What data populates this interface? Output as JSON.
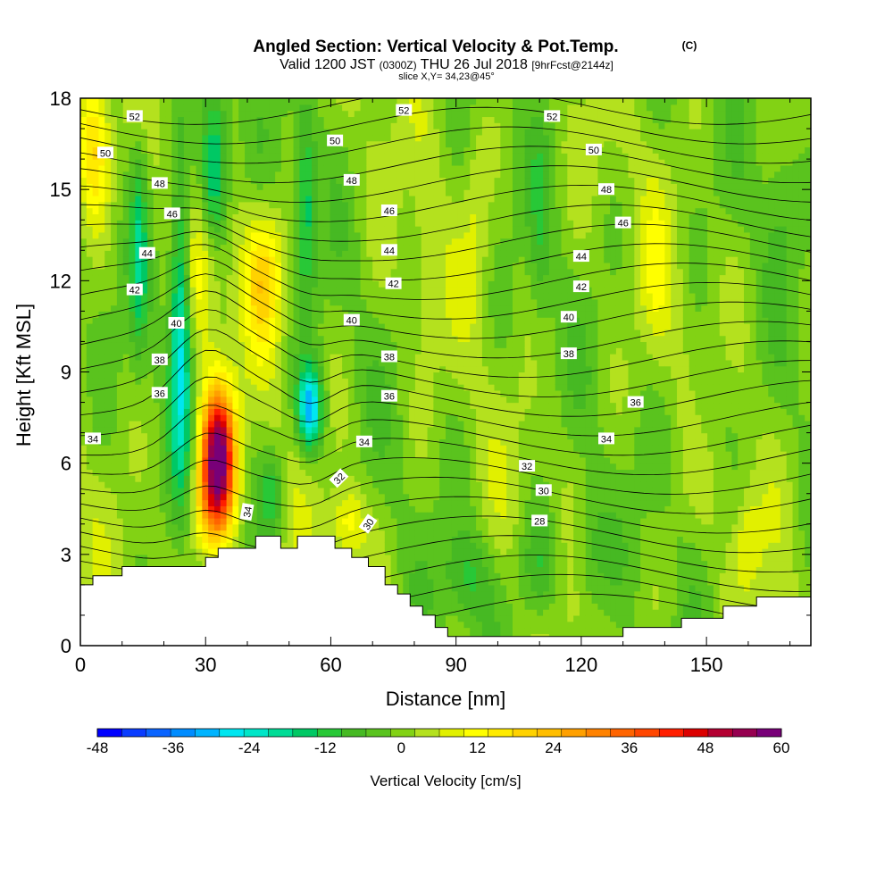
{
  "chart_data": {
    "type": "heatmap",
    "title": "Angled Section: Vertical Velocity & Pot.Temp.",
    "title_mark": "(C)",
    "subtitle": {
      "valid": "Valid 1200 JST",
      "utc": "(0300Z)",
      "date": "THU 26 Jul 2018",
      "fcst": "[9hrFcst@2144z]",
      "slice": "slice X,Y= 34,23@45°"
    },
    "xlabel": "Distance [nm]",
    "ylabel": "Height [Kft MSL]",
    "xlim": [
      0,
      175
    ],
    "ylim": [
      0,
      18
    ],
    "x_ticks": [
      0,
      30,
      60,
      90,
      120,
      150
    ],
    "y_ticks": [
      0,
      3,
      6,
      9,
      12,
      15,
      18
    ],
    "colorbar": {
      "label": "Vertical Velocity [cm/s]",
      "min": -48,
      "max": 60,
      "step": 4,
      "tick_labels": [
        "-48",
        "-36",
        "-24",
        "-12",
        "0",
        "12",
        "24",
        "36",
        "48",
        "60"
      ],
      "colors": [
        "#0000ff",
        "#0a3cff",
        "#0a64ff",
        "#008cff",
        "#00b4ff",
        "#00e6f0",
        "#00e6c8",
        "#00dc96",
        "#00c864",
        "#28c837",
        "#46b923",
        "#5ac31e",
        "#82d214",
        "#b4e11e",
        "#e1f000",
        "#ffff00",
        "#ffeb00",
        "#ffd200",
        "#ffbe00",
        "#ffa000",
        "#ff8200",
        "#ff6400",
        "#ff4600",
        "#ff1e00",
        "#dc0000",
        "#b40032",
        "#960050",
        "#780078"
      ]
    },
    "contour_labels": [
      {
        "text": "52",
        "x": 13,
        "y": 17.4
      },
      {
        "text": "52",
        "x": 77.5,
        "y": 17.6
      },
      {
        "text": "52",
        "x": 113,
        "y": 17.4
      },
      {
        "text": "50",
        "x": 6,
        "y": 16.2
      },
      {
        "text": "50",
        "x": 61,
        "y": 16.6
      },
      {
        "text": "50",
        "x": 123,
        "y": 16.3
      },
      {
        "text": "48",
        "x": 19,
        "y": 15.2
      },
      {
        "text": "48",
        "x": 65,
        "y": 15.3
      },
      {
        "text": "48",
        "x": 126,
        "y": 15.0
      },
      {
        "text": "46",
        "x": 22,
        "y": 14.2
      },
      {
        "text": "46",
        "x": 74,
        "y": 14.3
      },
      {
        "text": "46",
        "x": 130,
        "y": 13.9
      },
      {
        "text": "44",
        "x": 16,
        "y": 12.9
      },
      {
        "text": "44",
        "x": 74,
        "y": 13.0
      },
      {
        "text": "44",
        "x": 120,
        "y": 12.8
      },
      {
        "text": "42",
        "x": 13,
        "y": 11.7
      },
      {
        "text": "42",
        "x": 75,
        "y": 11.9
      },
      {
        "text": "42",
        "x": 120,
        "y": 11.8
      },
      {
        "text": "40",
        "x": 23,
        "y": 10.6
      },
      {
        "text": "40",
        "x": 65,
        "y": 10.7
      },
      {
        "text": "40",
        "x": 117,
        "y": 10.8
      },
      {
        "text": "38",
        "x": 19,
        "y": 9.4
      },
      {
        "text": "38",
        "x": 74,
        "y": 9.5
      },
      {
        "text": "38",
        "x": 117,
        "y": 9.6
      },
      {
        "text": "36",
        "x": 19,
        "y": 8.3
      },
      {
        "text": "36",
        "x": 74,
        "y": 8.2
      },
      {
        "text": "36",
        "x": 133,
        "y": 8.0
      },
      {
        "text": "34",
        "x": 3,
        "y": 6.8
      },
      {
        "text": "34",
        "x": 68,
        "y": 6.7
      },
      {
        "text": "34",
        "x": 126,
        "y": 6.8
      },
      {
        "text": "34",
        "x": 40,
        "y": 4.4,
        "rot": -80
      },
      {
        "text": "32",
        "x": 62,
        "y": 5.5,
        "rot": -45
      },
      {
        "text": "32",
        "x": 107,
        "y": 5.9
      },
      {
        "text": "30",
        "x": 69,
        "y": 4.0,
        "rot": -55
      },
      {
        "text": "30",
        "x": 111,
        "y": 5.1
      },
      {
        "text": "28",
        "x": 110,
        "y": 4.1
      }
    ],
    "velocity_features": [
      {
        "x": 33,
        "y": 6.3,
        "sx": 4.0,
        "sy": 2.2,
        "value": 60
      },
      {
        "x": 31,
        "y": 4.5,
        "sx": 5.0,
        "sy": 1.6,
        "value": 16
      },
      {
        "x": 30,
        "y": 12.5,
        "sx": 5.0,
        "sy": 2.6,
        "value": 14
      },
      {
        "x": 44,
        "y": 12.2,
        "sx": 4.5,
        "sy": 2.2,
        "value": 18
      },
      {
        "x": 3,
        "y": 16.5,
        "sx": 4.0,
        "sy": 2.5,
        "value": 20
      },
      {
        "x": 24,
        "y": 10.5,
        "sx": 2.5,
        "sy": 5.0,
        "value": -28
      },
      {
        "x": 32,
        "y": 15.5,
        "sx": 3.5,
        "sy": 3.0,
        "value": -26
      },
      {
        "x": 55,
        "y": 7.8,
        "sx": 3.0,
        "sy": 1.4,
        "value": -32
      },
      {
        "x": 54,
        "y": 14.5,
        "sx": 2.5,
        "sy": 3.0,
        "value": -16
      },
      {
        "x": 14,
        "y": 13.0,
        "sx": 2.0,
        "sy": 3.5,
        "value": -14
      },
      {
        "x": 46,
        "y": 5.0,
        "sx": 3.0,
        "sy": 1.5,
        "value": -12
      },
      {
        "x": 64,
        "y": 4.0,
        "sx": 4.0,
        "sy": 1.2,
        "value": 12
      },
      {
        "x": 93,
        "y": 2.2,
        "sx": 6.0,
        "sy": 1.5,
        "value": -10
      },
      {
        "x": 110,
        "y": 2.5,
        "sx": 5.0,
        "sy": 1.8,
        "value": -10
      },
      {
        "x": 122,
        "y": 3.0,
        "sx": 4.0,
        "sy": 2.0,
        "value": -8
      },
      {
        "x": 83,
        "y": 12.5,
        "sx": 3.0,
        "sy": 3.0,
        "value": 6
      },
      {
        "x": 138,
        "y": 12.0,
        "sx": 4.0,
        "sy": 3.0,
        "value": 6
      },
      {
        "x": 168,
        "y": 15.0,
        "sx": 4.0,
        "sy": 3.0,
        "value": -6
      },
      {
        "x": 95,
        "y": 14.5,
        "sx": 3.0,
        "sy": 3.5,
        "value": 6
      },
      {
        "x": 110,
        "y": 13.0,
        "sx": 2.5,
        "sy": 4.0,
        "value": -6
      },
      {
        "x": 150,
        "y": 8.0,
        "sx": 5.0,
        "sy": 2.0,
        "value": -6
      },
      {
        "x": 160,
        "y": 3.5,
        "sx": 3.0,
        "sy": 1.5,
        "value": 8
      }
    ],
    "terrain": [
      [
        0,
        2.0
      ],
      [
        3,
        2.0
      ],
      [
        3,
        2.3
      ],
      [
        10,
        2.3
      ],
      [
        10,
        2.6
      ],
      [
        30,
        2.6
      ],
      [
        30,
        2.9
      ],
      [
        33,
        2.9
      ],
      [
        33,
        3.2
      ],
      [
        42,
        3.2
      ],
      [
        42,
        3.6
      ],
      [
        48,
        3.6
      ],
      [
        48,
        3.2
      ],
      [
        52,
        3.2
      ],
      [
        52,
        3.6
      ],
      [
        61,
        3.6
      ],
      [
        61,
        3.2
      ],
      [
        65,
        3.2
      ],
      [
        65,
        2.9
      ],
      [
        69,
        2.9
      ],
      [
        69,
        2.6
      ],
      [
        73,
        2.6
      ],
      [
        73,
        2.0
      ],
      [
        76,
        2.0
      ],
      [
        76,
        1.7
      ],
      [
        79,
        1.7
      ],
      [
        79,
        1.3
      ],
      [
        82,
        1.3
      ],
      [
        82,
        1.0
      ],
      [
        85,
        1.0
      ],
      [
        85,
        0.6
      ],
      [
        88,
        0.6
      ],
      [
        88,
        0.3
      ],
      [
        123,
        0.3
      ],
      [
        123,
        0.3
      ],
      [
        130,
        0.3
      ],
      [
        130,
        0.6
      ],
      [
        144,
        0.6
      ],
      [
        144,
        0.9
      ],
      [
        154,
        0.9
      ],
      [
        154,
        1.3
      ],
      [
        162,
        1.3
      ],
      [
        162,
        1.6
      ],
      [
        175,
        1.6
      ]
    ]
  }
}
